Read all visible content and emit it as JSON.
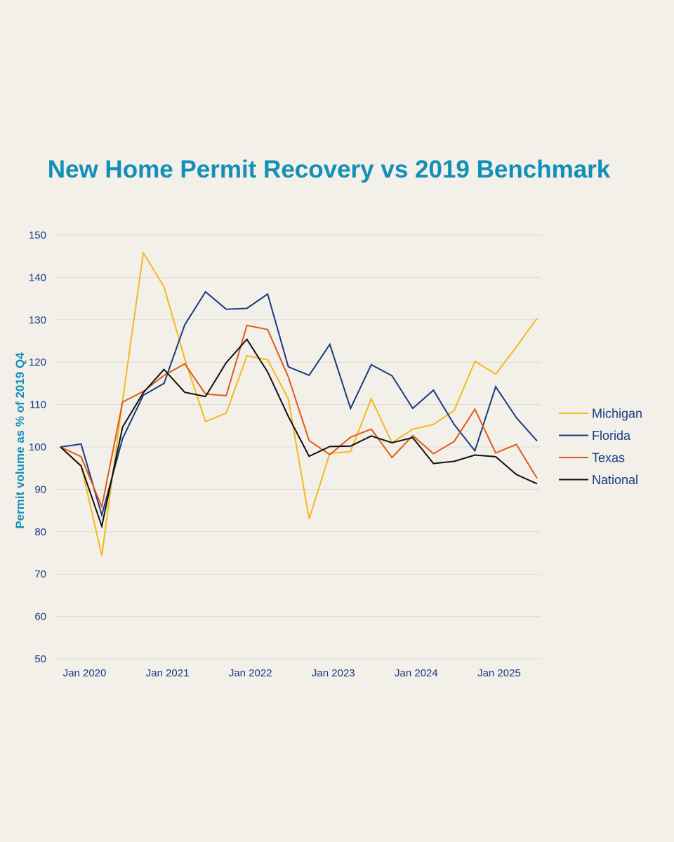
{
  "chart_data": {
    "type": "line",
    "title": "New Home Permit Recovery vs 2019 Benchmark",
    "xlabel": "",
    "ylabel": "Permit volume as % of 2019 Q4",
    "ylim": [
      50,
      150
    ],
    "yticks": [
      50,
      60,
      70,
      80,
      90,
      100,
      110,
      120,
      130,
      140,
      150
    ],
    "x_labels": [
      "Jan 2020",
      "Jan 2021",
      "Jan 2022",
      "Jan 2023",
      "Jan 2024",
      "Jan 2025"
    ],
    "x_label_index": [
      1,
      5,
      9,
      13,
      17,
      21
    ],
    "legend_position": "right",
    "series": [
      {
        "name": "Michigan",
        "color": "#f4b91a",
        "values": [
          100,
          95.7,
          74.3,
          111,
          145.8,
          137.8,
          120.8,
          106,
          108,
          121.5,
          120.6,
          111.3,
          83,
          98.5,
          98.9,
          111.4,
          101,
          104.2,
          105.3,
          108.6,
          120.2,
          117.2,
          123.6,
          130.4
        ]
      },
      {
        "name": "Florida",
        "color": "#173b82",
        "values": [
          100,
          100.7,
          83.9,
          102,
          112.2,
          115,
          128.8,
          136.6,
          132.5,
          132.7,
          136.1,
          118.9,
          116.9,
          124.2,
          109.1,
          119.4,
          116.8,
          109.1,
          113.4,
          105.3,
          99.1,
          114.2,
          106.9,
          101.4
        ]
      },
      {
        "name": "Texas",
        "color": "#e05a1a",
        "values": [
          100,
          97.7,
          85.9,
          110.6,
          113.1,
          116.9,
          119.6,
          112.5,
          112.1,
          128.7,
          127.7,
          116.5,
          101.5,
          98.2,
          102.3,
          104.2,
          97.5,
          102.7,
          98.4,
          101.3,
          108.9,
          98.6,
          100.6,
          92.6
        ]
      },
      {
        "name": "National",
        "color": "#101010",
        "values": [
          100,
          95.5,
          81.3,
          104.7,
          112.8,
          118.3,
          112.9,
          111.9,
          119.9,
          125.4,
          117.7,
          107.2,
          97.8,
          100.1,
          100.2,
          102.6,
          101,
          102.2,
          96.1,
          96.6,
          98.1,
          97.7,
          93.5,
          91.3
        ]
      }
    ]
  }
}
